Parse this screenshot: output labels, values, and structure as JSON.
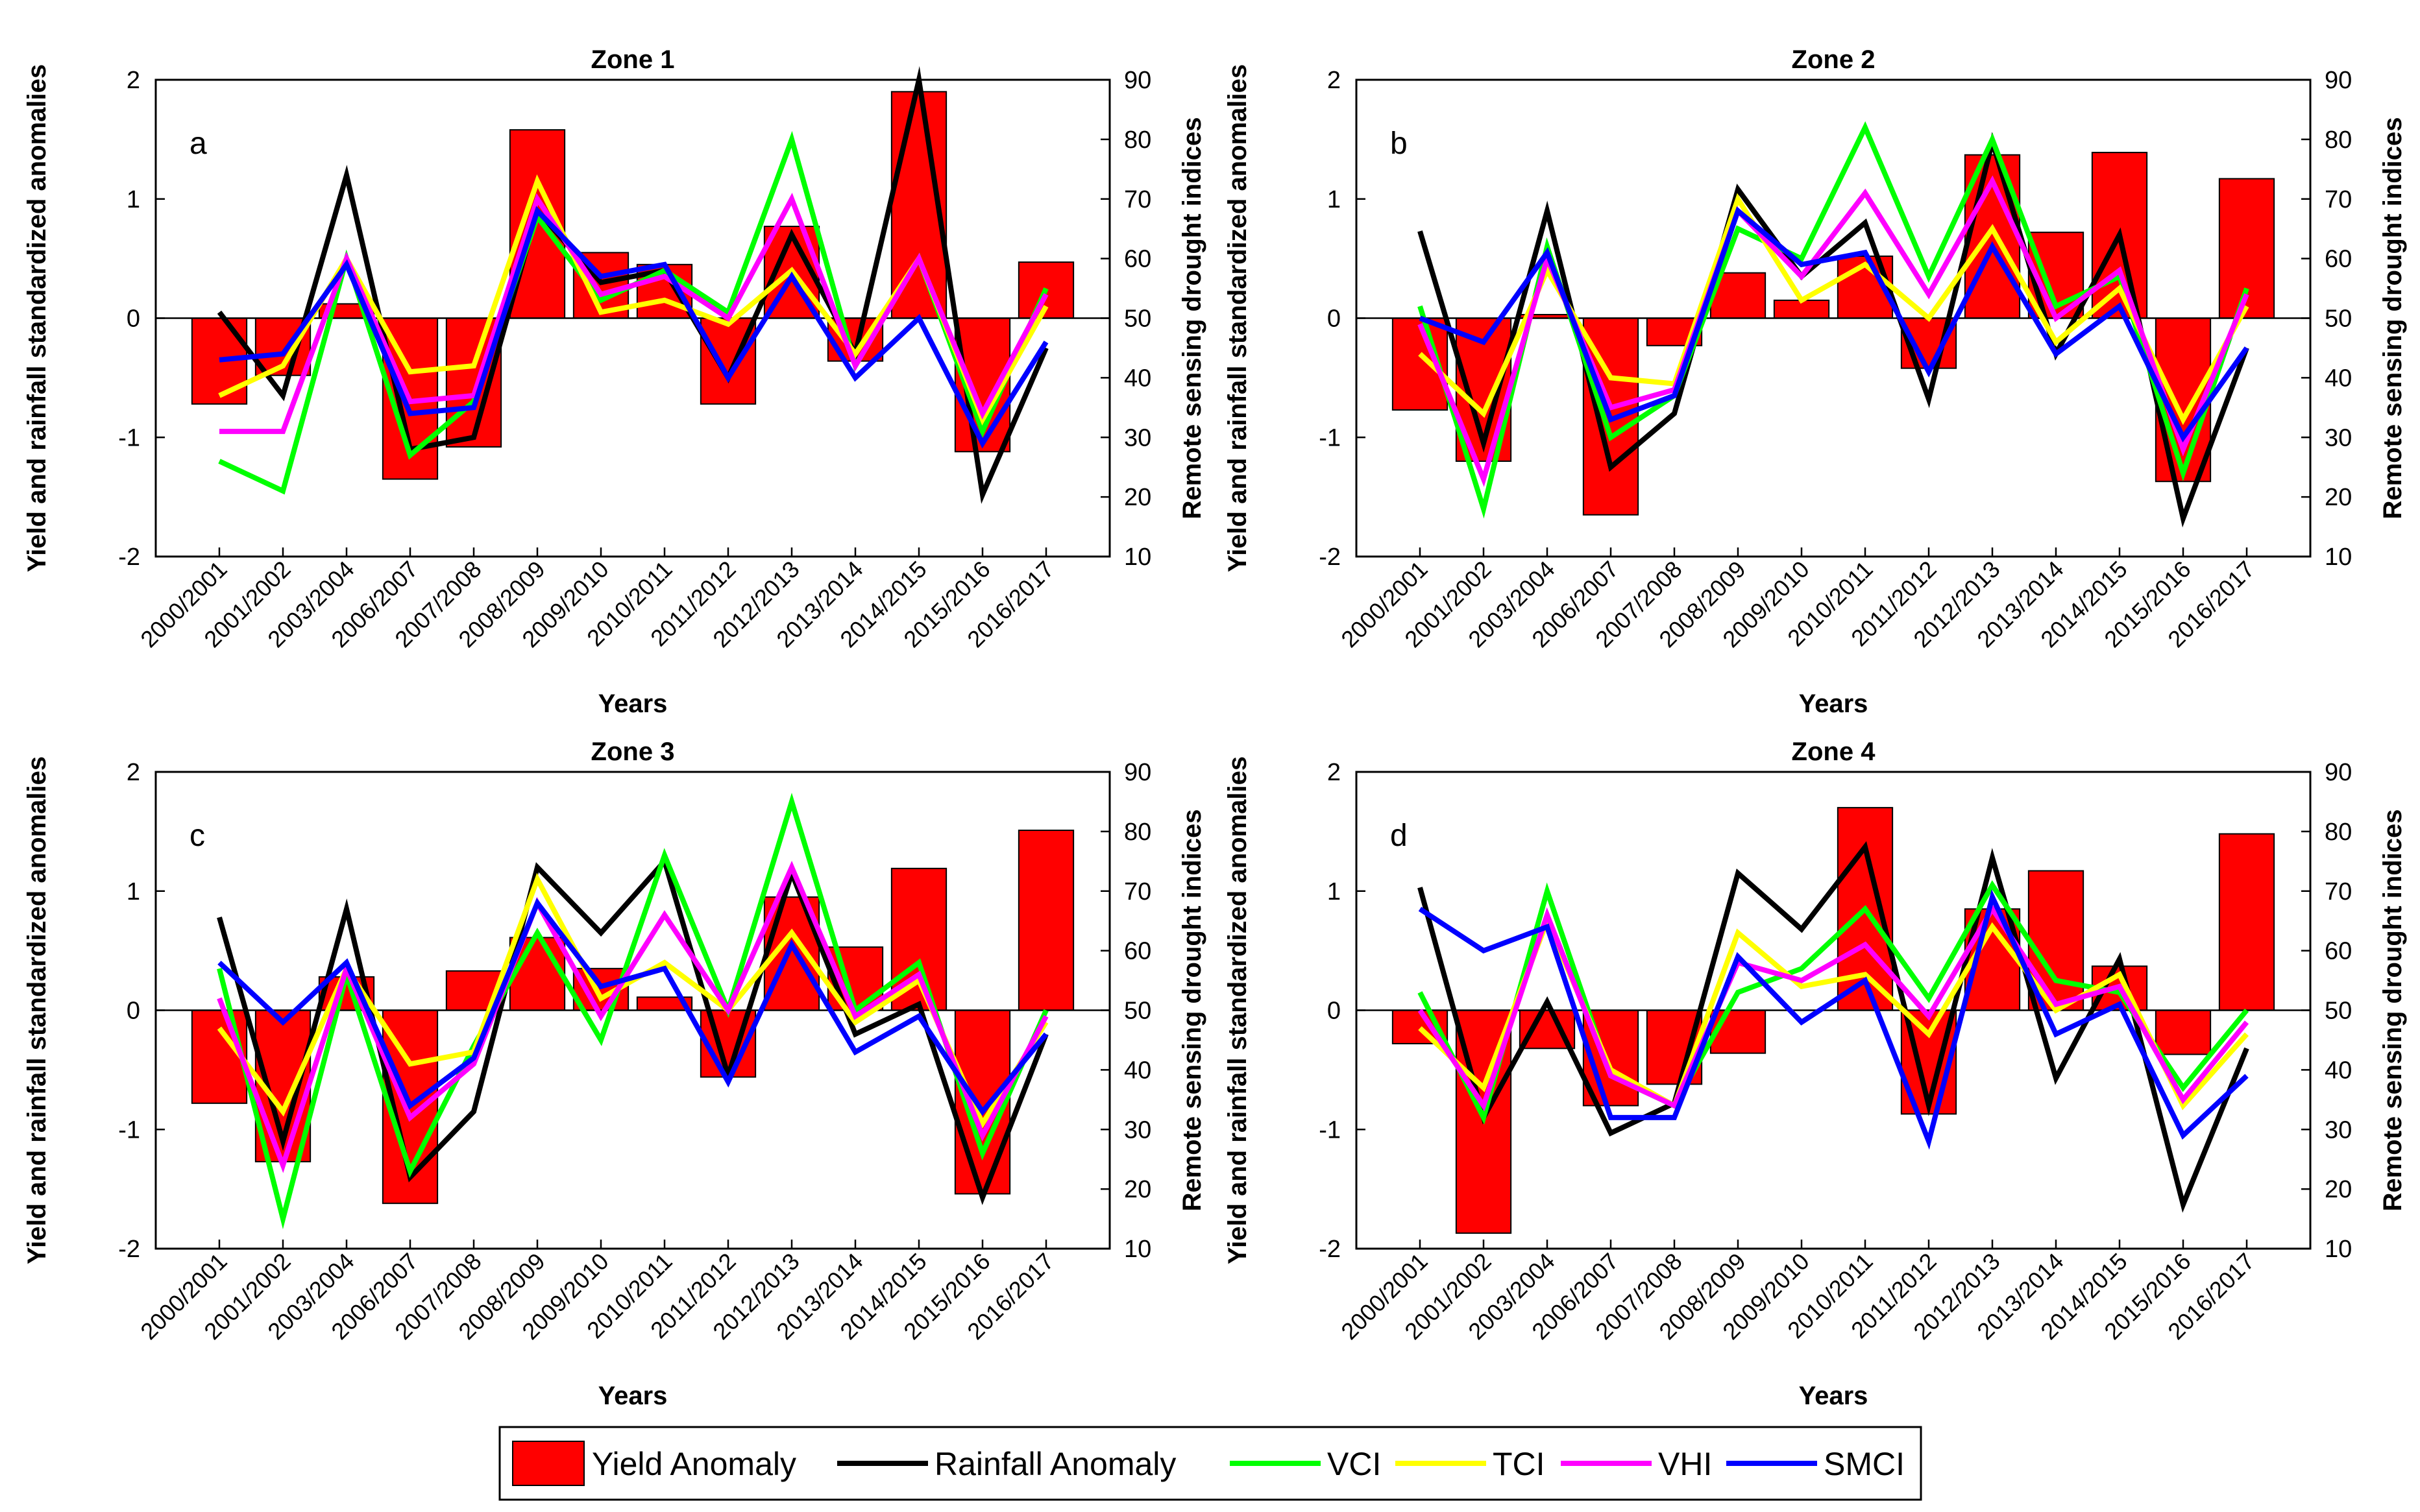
{
  "figure": {
    "y_left_label": "Yield and rainfall standardized anomalies",
    "y_right_label": "Remote sensing drought indices",
    "x_label": "Years"
  },
  "legend": {
    "items": [
      {
        "label": "Yield Anomaly",
        "color": "#ff0000",
        "kind": "bar"
      },
      {
        "label": "Rainfall Anomaly",
        "color": "#000000",
        "kind": "line"
      },
      {
        "label": "VCI",
        "color": "#00ff00",
        "kind": "line"
      },
      {
        "label": "TCI",
        "color": "#ffff00",
        "kind": "line"
      },
      {
        "label": "VHI",
        "color": "#ff00ff",
        "kind": "line"
      },
      {
        "label": "SMCI",
        "color": "#0000ff",
        "kind": "line"
      }
    ]
  },
  "chart_data": [
    {
      "type": "bar+line",
      "title": "Zone 1",
      "panel_label": "a",
      "categories": [
        "2000/2001",
        "2001/2002",
        "2003/2004",
        "2006/2007",
        "2007/2008",
        "2008/2009",
        "2009/2010",
        "2010/2011",
        "2011/2012",
        "2012/2013",
        "2013/2014",
        "2014/2015",
        "2015/2016",
        "2016/2017"
      ],
      "xlabel": "Years",
      "ylabel_left": "Yield and rainfall standardized anomalies",
      "ylabel_right": "Remote sensing drought indices",
      "ylim_left": [
        -2,
        2
      ],
      "yticks_left": [
        "-2",
        "-1",
        "0",
        "1",
        "2"
      ],
      "ylim_right": [
        10,
        90
      ],
      "yticks_right": [
        "10",
        "20",
        "30",
        "40",
        "50",
        "60",
        "70",
        "80",
        "90"
      ],
      "yield_anomaly": [
        -0.72,
        -0.48,
        0.12,
        -1.35,
        -1.08,
        1.58,
        0.55,
        0.45,
        -0.72,
        0.77,
        -0.36,
        1.9,
        -1.12,
        0.47
      ],
      "rainfall_anomaly": [
        0.05,
        -0.65,
        1.2,
        -1.1,
        -1.0,
        0.9,
        0.3,
        0.4,
        -0.5,
        0.7,
        -0.3,
        2.0,
        -1.48,
        -0.25
      ],
      "VCI": [
        26,
        21,
        60,
        27,
        36,
        67,
        53,
        58,
        51,
        80,
        42,
        60,
        31,
        55
      ],
      "TCI": [
        37,
        42,
        60,
        41,
        42,
        73,
        51,
        53,
        49,
        58,
        44,
        60,
        33,
        52
      ],
      "VHI": [
        31,
        31,
        60,
        36,
        37,
        70,
        54,
        57,
        50,
        70,
        42,
        60,
        34,
        54
      ],
      "SMCI": [
        43,
        44,
        59,
        34,
        35,
        68,
        57,
        59,
        40,
        57,
        40,
        50,
        29,
        46
      ]
    },
    {
      "type": "bar+line",
      "title": "Zone 2",
      "panel_label": "b",
      "categories": [
        "2000/2001",
        "2001/2002",
        "2003/2004",
        "2006/2007",
        "2007/2008",
        "2008/2009",
        "2009/2010",
        "2010/2011",
        "2011/2012",
        "2012/2013",
        "2013/2014",
        "2014/2015",
        "2015/2016",
        "2016/2017"
      ],
      "xlabel": "Years",
      "ylabel_left": "Yield and rainfall standardized anomalies",
      "ylabel_right": "Remote sensing drought indices",
      "ylim_left": [
        -2,
        2
      ],
      "yticks_left": [
        "-2",
        "-1",
        "0",
        "1",
        "2"
      ],
      "ylim_right": [
        10,
        90
      ],
      "yticks_right": [
        "10",
        "20",
        "30",
        "40",
        "50",
        "60",
        "70",
        "80",
        "90"
      ],
      "yield_anomaly": [
        -0.77,
        -1.2,
        0.03,
        -1.65,
        -0.23,
        0.38,
        0.15,
        0.52,
        -0.42,
        1.37,
        0.72,
        1.39,
        -1.37,
        1.17
      ],
      "rainfall_anomaly": [
        0.73,
        -1.05,
        0.9,
        -1.25,
        -0.8,
        1.08,
        0.35,
        0.8,
        -0.68,
        1.48,
        -0.3,
        0.7,
        -1.68,
        -0.25
      ],
      "VCI": [
        52,
        18,
        62,
        30,
        37,
        65,
        60,
        82,
        57,
        80,
        52,
        57,
        24,
        55
      ],
      "TCI": [
        44,
        34,
        58,
        40,
        39,
        70,
        53,
        59,
        50,
        65,
        46,
        55,
        33,
        52
      ],
      "VHI": [
        49,
        23,
        60,
        35,
        38,
        68,
        57,
        71,
        54,
        73,
        50,
        58,
        28,
        54
      ],
      "SMCI": [
        50,
        46,
        61,
        33,
        37,
        68,
        59,
        61,
        41,
        62,
        44,
        52,
        30,
        45
      ]
    },
    {
      "type": "bar+line",
      "title": "Zone 3",
      "panel_label": "c",
      "categories": [
        "2000/2001",
        "2001/2002",
        "2003/2004",
        "2006/2007",
        "2007/2008",
        "2008/2009",
        "2009/2010",
        "2010/2011",
        "2011/2012",
        "2012/2013",
        "2013/2014",
        "2014/2015",
        "2015/2016",
        "2016/2017"
      ],
      "xlabel": "Years",
      "ylabel_left": "Yield and rainfall standardized anomalies",
      "ylabel_right": "Remote sensing drought indices",
      "ylim_left": [
        -2,
        2
      ],
      "yticks_left": [
        "-2",
        "-1",
        "0",
        "1",
        "2"
      ],
      "ylim_right": [
        10,
        90
      ],
      "yticks_right": [
        "10",
        "20",
        "30",
        "40",
        "50",
        "60",
        "70",
        "80",
        "90"
      ],
      "yield_anomaly": [
        -0.78,
        -1.27,
        0.28,
        -1.62,
        0.33,
        0.61,
        0.35,
        0.11,
        -0.56,
        0.95,
        0.53,
        1.19,
        -1.54,
        1.51
      ],
      "rainfall_anomaly": [
        0.78,
        -1.1,
        0.85,
        -1.4,
        -0.85,
        1.2,
        0.65,
        1.25,
        -0.55,
        1.15,
        -0.2,
        0.05,
        -1.57,
        -0.2
      ],
      "VCI": [
        57,
        15,
        56,
        23,
        44,
        63,
        45,
        76,
        50,
        85,
        50,
        58,
        26,
        50
      ],
      "TCI": [
        47,
        33,
        57,
        41,
        43,
        72,
        52,
        58,
        50,
        63,
        48,
        55,
        31,
        48
      ],
      "VHI": [
        52,
        24,
        57,
        32,
        41,
        68,
        49,
        66,
        50,
        74,
        49,
        56,
        29,
        49
      ],
      "SMCI": [
        58,
        48,
        58,
        34,
        42,
        68,
        54,
        57,
        38,
        61,
        43,
        49,
        33,
        46
      ]
    },
    {
      "type": "bar+line",
      "title": "Zone 4",
      "panel_label": "d",
      "categories": [
        "2000/2001",
        "2001/2002",
        "2003/2004",
        "2006/2007",
        "2007/2008",
        "2008/2009",
        "2009/2010",
        "2010/2011",
        "2011/2012",
        "2012/2013",
        "2013/2014",
        "2014/2015",
        "2015/2016",
        "2016/2017"
      ],
      "xlabel": "Years",
      "ylabel_left": "Yield and rainfall standardized anomalies",
      "ylabel_right": "Remote sensing drought indices",
      "ylim_left": [
        -2,
        2
      ],
      "yticks_left": [
        "-2",
        "-1",
        "0",
        "1",
        "2"
      ],
      "ylim_right": [
        10,
        90
      ],
      "yticks_right": [
        "10",
        "20",
        "30",
        "40",
        "50",
        "60",
        "70",
        "80",
        "90"
      ],
      "yield_anomaly": [
        -0.28,
        -1.87,
        -0.32,
        -0.8,
        -0.62,
        -0.36,
        0.0,
        1.7,
        -0.87,
        0.85,
        1.17,
        0.37,
        -0.37,
        1.48
      ],
      "rainfall_anomaly": [
        1.03,
        -0.9,
        0.07,
        -1.03,
        -0.78,
        1.15,
        0.68,
        1.37,
        -0.8,
        1.28,
        -0.57,
        0.43,
        -1.63,
        -0.32
      ],
      "VCI": [
        53,
        32,
        70,
        39,
        34,
        53,
        57,
        67,
        52,
        71,
        55,
        53,
        37,
        50
      ],
      "TCI": [
        47,
        37,
        65,
        40,
        34,
        63,
        54,
        56,
        46,
        64,
        50,
        56,
        34,
        46
      ],
      "VHI": [
        50,
        34,
        66,
        39,
        34,
        58,
        55,
        61,
        49,
        67,
        51,
        54,
        35,
        48
      ],
      "SMCI": [
        67,
        60,
        64,
        32,
        32,
        59,
        48,
        55,
        28,
        69,
        46,
        51,
        29,
        39
      ]
    }
  ]
}
